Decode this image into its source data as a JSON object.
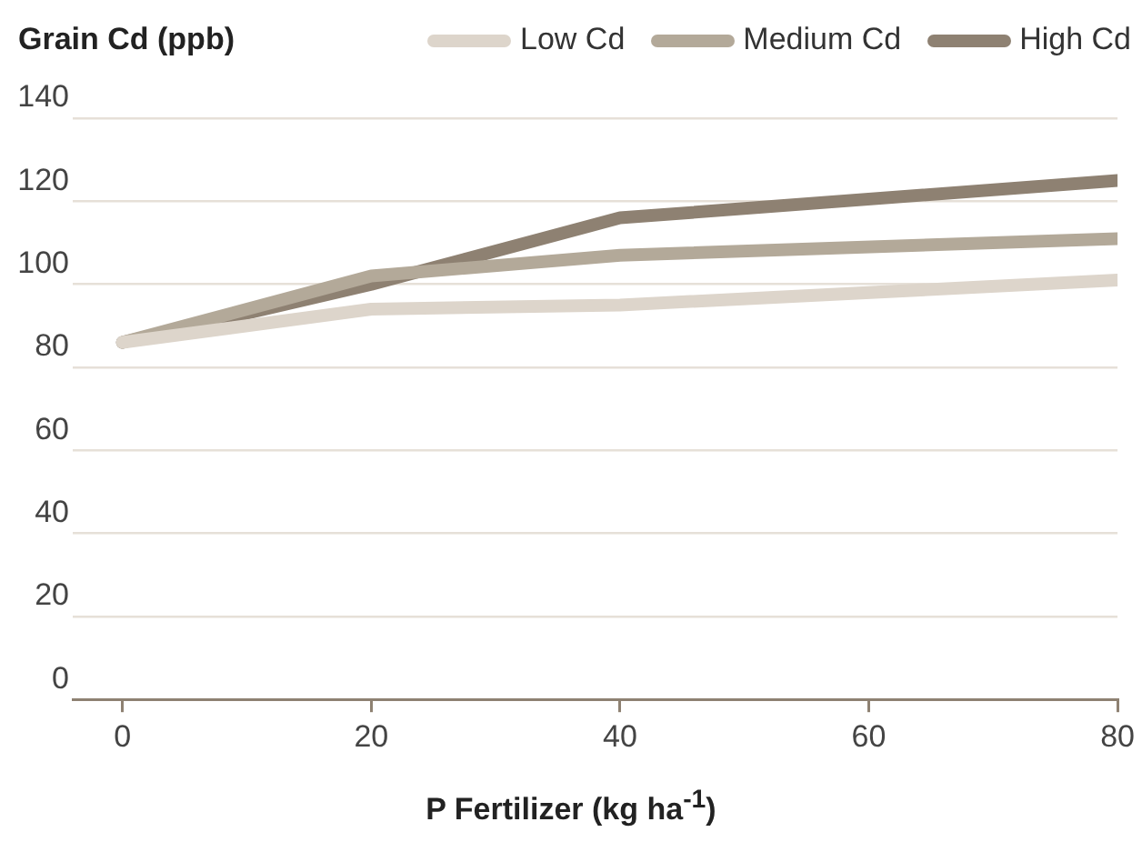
{
  "chart_data": {
    "type": "line",
    "title": "Grain Cd (ppb)",
    "xlabel": "P Fertilizer (kg ha$^{-1}$)",
    "x": [
      0,
      20,
      40,
      80
    ],
    "series": [
      {
        "name": "Low Cd",
        "color": "#ddd5cb",
        "values": [
          86,
          94,
          95,
          101
        ]
      },
      {
        "name": "Medium Cd",
        "color": "#b3a999",
        "values": [
          86,
          102,
          107,
          111
        ]
      },
      {
        "name": "High Cd",
        "color": "#8e8172",
        "values": [
          86,
          100,
          116,
          125
        ]
      }
    ],
    "xlim": [
      -4,
      80
    ],
    "xticks": [
      0,
      20,
      40,
      60,
      80
    ],
    "ylim": [
      0,
      140
    ],
    "yticks": [
      0,
      20,
      40,
      60,
      80,
      100,
      120,
      140
    ],
    "grid": "y",
    "legend": "top right",
    "marker": "none",
    "line_style": "solid"
  }
}
